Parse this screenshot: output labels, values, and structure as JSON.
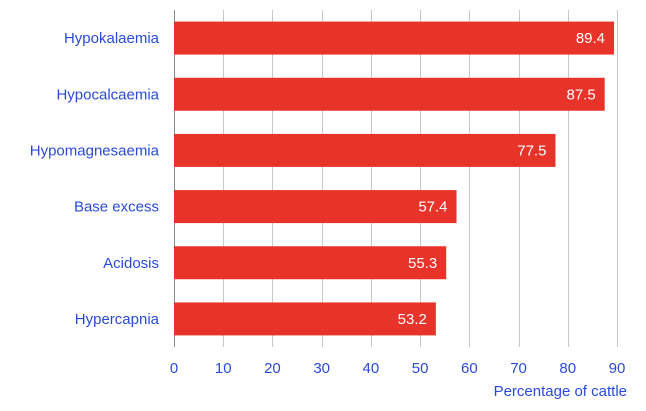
{
  "chart_data": {
    "type": "bar",
    "orientation": "horizontal",
    "title": "",
    "xlabel": "Percentage of cattle",
    "ylabel": "",
    "xlim": [
      0,
      90
    ],
    "xticks": [
      0,
      10,
      20,
      30,
      40,
      50,
      60,
      70,
      80,
      90
    ],
    "grid": "vertical",
    "categories": [
      "Hypokalaemia",
      "Hypocalcaemia",
      "Hypomagnesaemia",
      "Base excess",
      "Acidosis",
      "Hypercapnia"
    ],
    "values": [
      89.4,
      87.5,
      77.5,
      57.4,
      55.3,
      53.2
    ],
    "value_labels": [
      "89.4",
      "87.5",
      "77.5",
      "57.4",
      "55.3",
      "53.2"
    ],
    "colors": {
      "bar": "#e8332a",
      "text": "#2a4bd7",
      "grid": "#c8c8c8",
      "value_text": "#ffffff"
    }
  }
}
